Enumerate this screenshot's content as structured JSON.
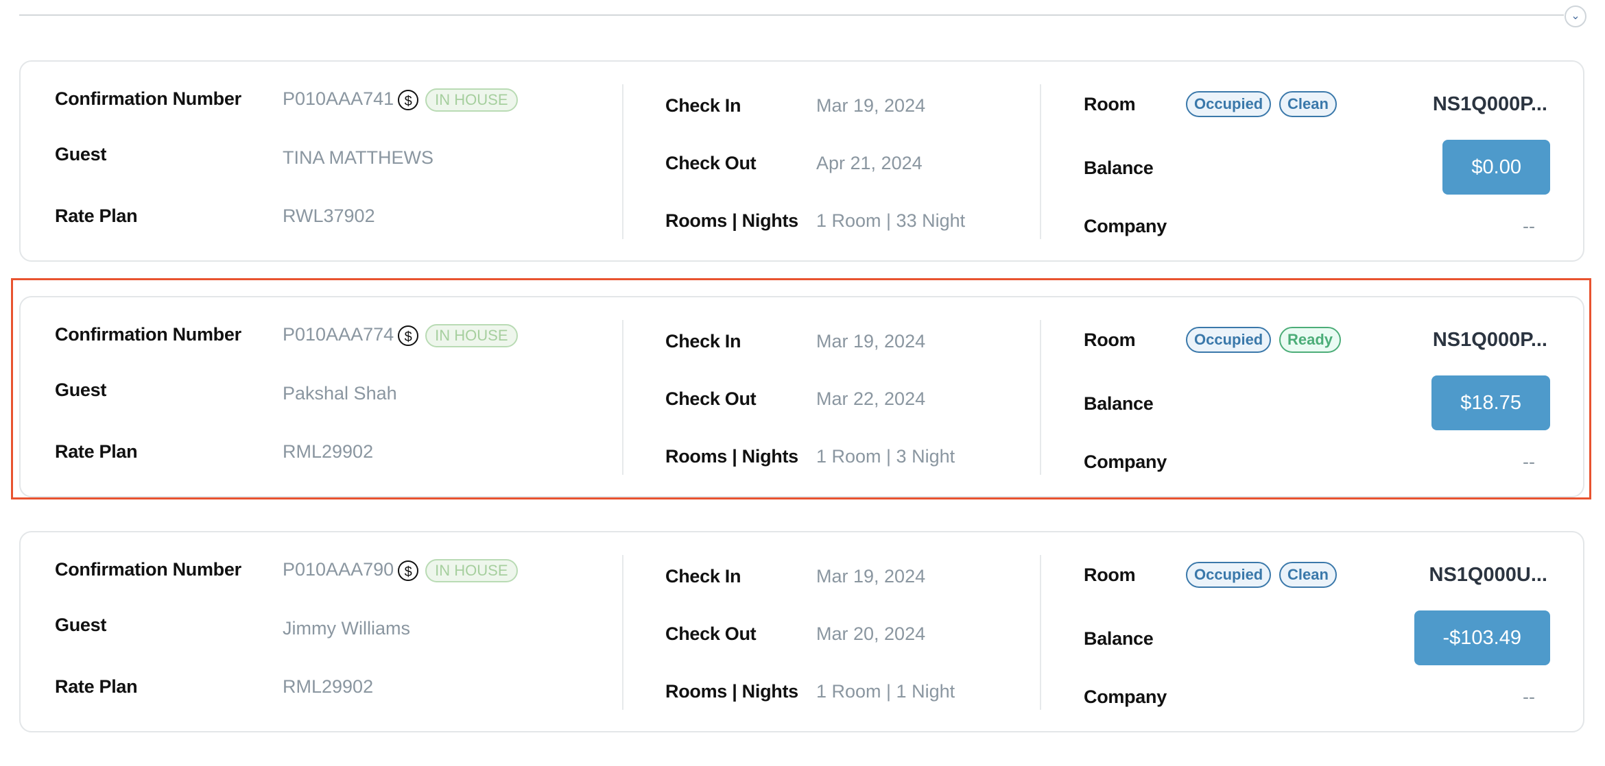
{
  "labels": {
    "confirmation": "Confirmation Number",
    "guest": "Guest",
    "rate_plan": "Rate Plan",
    "check_in": "Check In",
    "check_out": "Check Out",
    "rooms_nights": "Rooms | Nights",
    "room": "Room",
    "balance": "Balance",
    "company": "Company"
  },
  "colors": {
    "accent": "#4e9acb",
    "highlight": "#e8532f",
    "occupied": "#3a78aa",
    "ready": "#4cad78",
    "in_house": "#a6cf9e"
  },
  "reservations": [
    {
      "confirmation": "P010AAA741",
      "status": "IN HOUSE",
      "guest": "TINA MATTHEWS",
      "rate_plan": "RWL37902",
      "check_in": "Mar 19, 2024",
      "check_out": "Apr 21, 2024",
      "rooms_nights": "1 Room | 33 Night",
      "occupancy": "Occupied",
      "housekeeping": "Clean",
      "room": "NS1Q000P...",
      "balance": "$0.00",
      "company": "--",
      "selected": false
    },
    {
      "confirmation": "P010AAA774",
      "status": "IN HOUSE",
      "guest": "Pakshal Shah",
      "rate_plan": "RML29902",
      "check_in": "Mar 19, 2024",
      "check_out": "Mar 22, 2024",
      "rooms_nights": "1 Room | 3 Night",
      "occupancy": "Occupied",
      "housekeeping": "Ready",
      "room": "NS1Q000P...",
      "balance": "$18.75",
      "company": "--",
      "selected": true
    },
    {
      "confirmation": "P010AAA790",
      "status": "IN HOUSE",
      "guest": "Jimmy Williams",
      "rate_plan": "RML29902",
      "check_in": "Mar 19, 2024",
      "check_out": "Mar 20, 2024",
      "rooms_nights": "1 Room | 1 Night",
      "occupancy": "Occupied",
      "housekeeping": "Clean",
      "room": "NS1Q000U...",
      "balance": "-$103.49",
      "company": "--",
      "selected": false
    }
  ]
}
